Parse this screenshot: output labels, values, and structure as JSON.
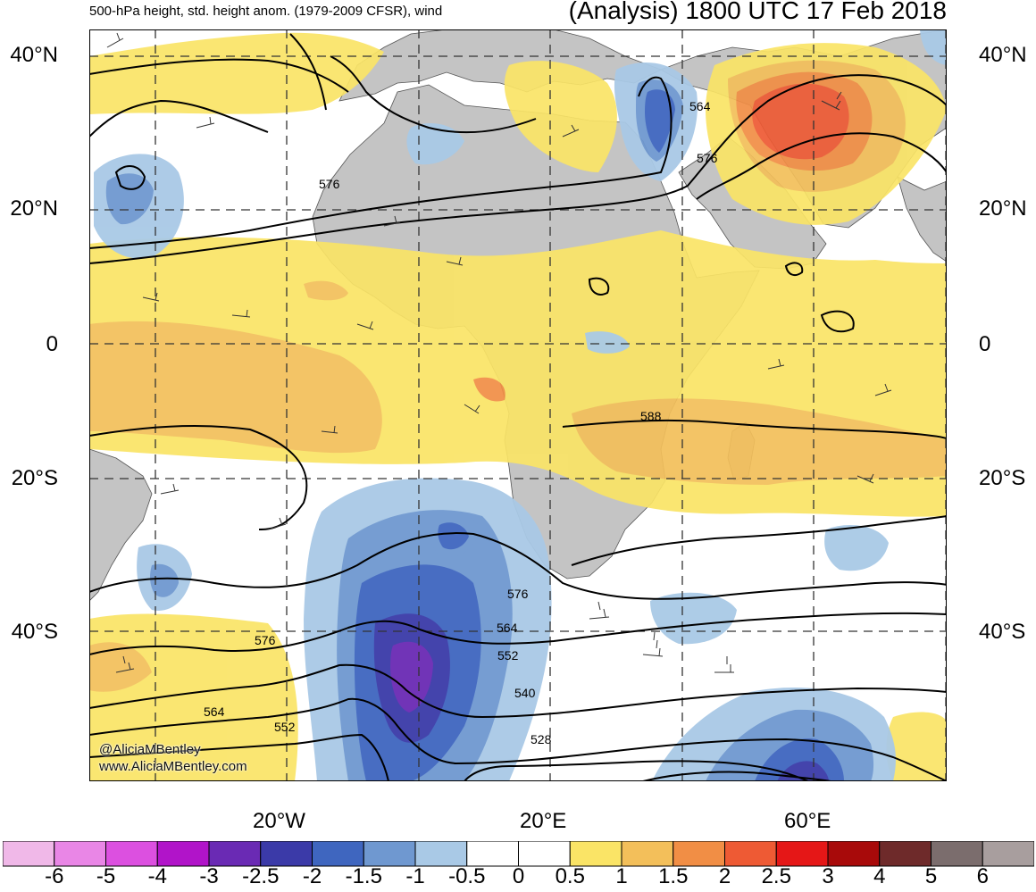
{
  "header": {
    "left": "500-hPa height, std. height anom. (1979-2009 CFSR), wind",
    "right": "(Analysis) 1800 UTC 17 Feb 2018"
  },
  "lat_labels": [
    "40°N",
    "20°N",
    "0",
    "20°S",
    "40°S"
  ],
  "lon_labels": [
    "20°W",
    "20°E",
    "60°E"
  ],
  "contour_labels": [
    "576",
    "564",
    "576",
    "588",
    "576",
    "564",
    "552",
    "540",
    "528",
    "576",
    "564",
    "552"
  ],
  "credits": [
    "@AliciaMBentley",
    "www.AliciaMBentley.com"
  ],
  "colorbar": {
    "labels": [
      "-6",
      "-5",
      "-4",
      "-3",
      "-2.5",
      "-2",
      "-1.5",
      "-1",
      "-0.5",
      "0",
      "0.5",
      "1",
      "1.5",
      "2",
      "2.5",
      "3",
      "4",
      "5",
      "6"
    ],
    "colors": [
      "#f0b8e8",
      "#e986e6",
      "#dc50e0",
      "#b114c9",
      "#6a2ab4",
      "#3b3aa8",
      "#3f66bf",
      "#6f98d0",
      "#a9c9e6",
      "#ffffff",
      "#ffffff",
      "#fae466",
      "#f3bf5a",
      "#f18e45",
      "#ee5a34",
      "#e51717",
      "#a80a0a",
      "#6e2a2a",
      "#7b6d6d",
      "#a89e9e"
    ]
  },
  "colors": {
    "land": "#c4c4c4",
    "ocean": "#ffffff",
    "contour": "#000000"
  }
}
